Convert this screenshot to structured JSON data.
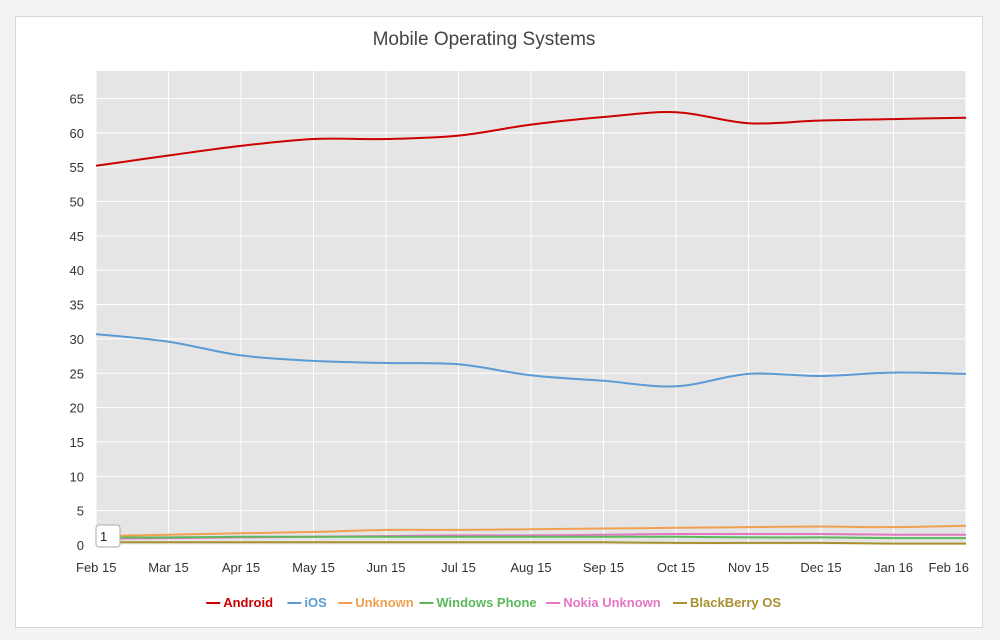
{
  "chart_data": {
    "type": "line",
    "title": "Mobile Operating Systems",
    "xlabel": "",
    "ylabel": "",
    "ylim": [
      0,
      69
    ],
    "y_ticks": [
      0,
      5,
      10,
      15,
      20,
      25,
      30,
      35,
      40,
      45,
      50,
      55,
      60,
      65
    ],
    "grid": true,
    "legend_position": "bottom",
    "categories": [
      "Feb 15",
      "Mar 15",
      "Apr 15",
      "May 15",
      "Jun 15",
      "Jul 15",
      "Aug 15",
      "Sep 15",
      "Oct 15",
      "Nov 15",
      "Dec 15",
      "Jan 16",
      "Feb 16"
    ],
    "series": [
      {
        "name": "Android",
        "color": "#cc0000",
        "values": [
          55.2,
          56.7,
          58.1,
          59.1,
          59.1,
          59.6,
          61.2,
          62.3,
          63.0,
          61.4,
          61.8,
          62.0,
          62.2
        ]
      },
      {
        "name": "iOS",
        "color": "#5b9bd5",
        "values": [
          30.7,
          29.6,
          27.6,
          26.8,
          26.5,
          26.3,
          24.7,
          23.9,
          23.1,
          24.9,
          24.6,
          25.1,
          24.9
        ]
      },
      {
        "name": "Unknown",
        "color": "#f0a050",
        "values": [
          1.3,
          1.5,
          1.7,
          1.9,
          2.2,
          2.2,
          2.3,
          2.4,
          2.5,
          2.6,
          2.7,
          2.6,
          2.8
        ]
      },
      {
        "name": "Windows Phone",
        "color": "#5cb85c",
        "values": [
          1.1,
          1.1,
          1.2,
          1.2,
          1.2,
          1.2,
          1.2,
          1.2,
          1.2,
          1.1,
          1.1,
          1.0,
          1.0
        ]
      },
      {
        "name": "Nokia Unknown",
        "color": "#e377c2",
        "values": [
          0.9,
          1.0,
          1.1,
          1.2,
          1.3,
          1.4,
          1.4,
          1.5,
          1.6,
          1.6,
          1.6,
          1.5,
          1.5
        ]
      },
      {
        "name": "BlackBerry OS",
        "color": "#a89030",
        "values": [
          0.4,
          0.4,
          0.4,
          0.4,
          0.4,
          0.4,
          0.4,
          0.4,
          0.3,
          0.3,
          0.3,
          0.2,
          0.2
        ]
      }
    ],
    "tooltip_value": "1"
  }
}
